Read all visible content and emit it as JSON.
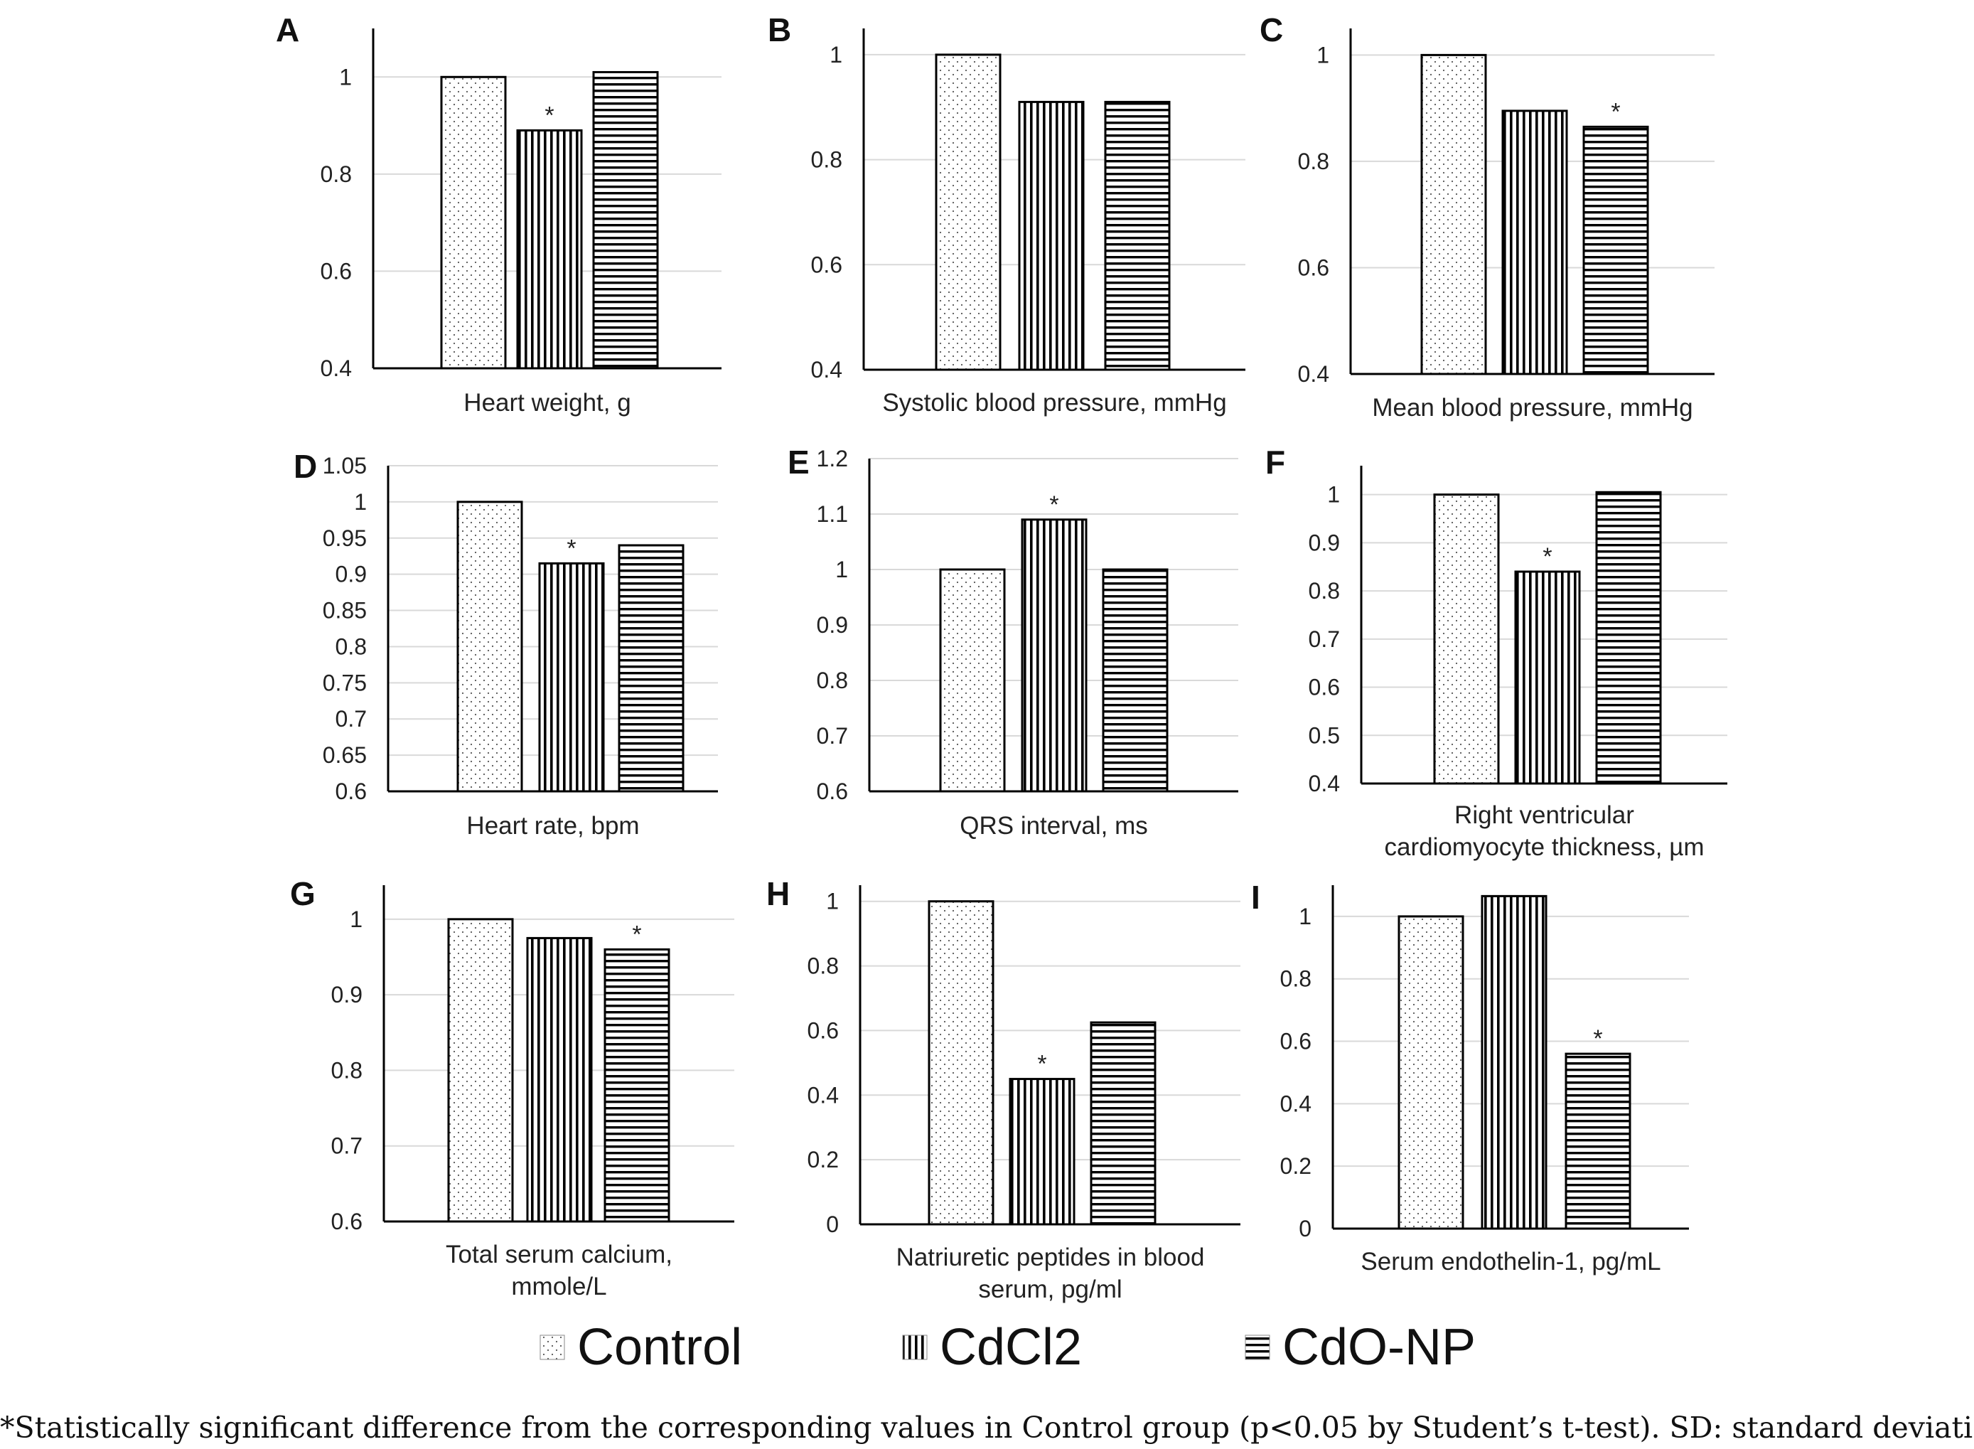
{
  "legend": [
    {
      "name": "Control",
      "pattern": "dots"
    },
    {
      "name": "CdCl2",
      "pattern": "vlines"
    },
    {
      "name": "CdO-NP",
      "pattern": "hlines"
    }
  ],
  "footnote": "*Statistically significant difference from the corresponding values in Control group (p<0.05 by Student’s t-test). SD: standard deviation.",
  "colors": {
    "axis": "#000000",
    "grid": "#d9d9d9",
    "text": "#222222",
    "bar_fill": "#ffffff"
  },
  "chart_data": [
    {
      "panel": "A",
      "type": "bar",
      "xlabel": [
        "Heart weight, g"
      ],
      "ylim": [
        0.4,
        1.1
      ],
      "yticks": [
        "0.4",
        "0.6",
        "0.8",
        "1"
      ],
      "series": [
        {
          "name": "Control",
          "value": 1.0,
          "sig": false
        },
        {
          "name": "CdCl2",
          "value": 0.89,
          "sig": true
        },
        {
          "name": "CdO-NP",
          "value": 1.01,
          "sig": false
        }
      ]
    },
    {
      "panel": "B",
      "type": "bar",
      "xlabel": [
        "Systolic blood pressure, mmHg"
      ],
      "ylim": [
        0.4,
        1.05
      ],
      "yticks": [
        "0.4",
        "0.6",
        "0.8",
        "1"
      ],
      "series": [
        {
          "name": "Control",
          "value": 1.0,
          "sig": false
        },
        {
          "name": "CdCl2",
          "value": 0.91,
          "sig": false
        },
        {
          "name": "CdO-NP",
          "value": 0.91,
          "sig": false
        }
      ]
    },
    {
      "panel": "C",
      "type": "bar",
      "xlabel": [
        "Mean blood pressure, mmHg"
      ],
      "ylim": [
        0.4,
        1.05
      ],
      "yticks": [
        "0.4",
        "0.6",
        "0.8",
        "1"
      ],
      "series": [
        {
          "name": "Control",
          "value": 1.0,
          "sig": false
        },
        {
          "name": "CdCl2",
          "value": 0.895,
          "sig": false
        },
        {
          "name": "CdO-NP",
          "value": 0.865,
          "sig": true
        }
      ]
    },
    {
      "panel": "D",
      "type": "bar",
      "xlabel": [
        "Heart rate, bpm"
      ],
      "ylim": [
        0.6,
        1.05
      ],
      "yticks": [
        "0.6",
        "0.65",
        "0.7",
        "0.75",
        "0.8",
        "0.85",
        "0.9",
        "0.95",
        "1",
        "1.05"
      ],
      "series": [
        {
          "name": "Control",
          "value": 1.0,
          "sig": false
        },
        {
          "name": "CdCl2",
          "value": 0.915,
          "sig": true
        },
        {
          "name": "CdO-NP",
          "value": 0.94,
          "sig": false
        }
      ]
    },
    {
      "panel": "E",
      "type": "bar",
      "xlabel": [
        "QRS interval, ms"
      ],
      "ylim": [
        0.6,
        1.2
      ],
      "yticks": [
        "0.6",
        "0.7",
        "0.8",
        "0.9",
        "1",
        "1.1",
        "1.2"
      ],
      "series": [
        {
          "name": "Control",
          "value": 1.0,
          "sig": false
        },
        {
          "name": "CdCl2",
          "value": 1.09,
          "sig": true
        },
        {
          "name": "CdO-NP",
          "value": 1.0,
          "sig": false
        }
      ]
    },
    {
      "panel": "F",
      "type": "bar",
      "xlabel": [
        "Right ventricular",
        "cardiomyocyte thickness, µm"
      ],
      "ylim": [
        0.4,
        1.06
      ],
      "yticks": [
        "0.4",
        "0.5",
        "0.6",
        "0.7",
        "0.8",
        "0.9",
        "1"
      ],
      "series": [
        {
          "name": "Control",
          "value": 1.0,
          "sig": false
        },
        {
          "name": "CdCl2",
          "value": 0.84,
          "sig": true
        },
        {
          "name": "CdO-NP",
          "value": 1.005,
          "sig": false
        }
      ]
    },
    {
      "panel": "G",
      "type": "bar",
      "xlabel": [
        "Total serum calcium,",
        "mmole/L"
      ],
      "ylim": [
        0.6,
        1.045
      ],
      "yticks": [
        "0.6",
        "0.7",
        "0.8",
        "0.9",
        "1"
      ],
      "series": [
        {
          "name": "Control",
          "value": 1.0,
          "sig": false
        },
        {
          "name": "CdCl2",
          "value": 0.975,
          "sig": false
        },
        {
          "name": "CdO-NP",
          "value": 0.96,
          "sig": true
        }
      ]
    },
    {
      "panel": "H",
      "type": "bar",
      "xlabel": [
        "Natriuretic peptides in blood",
        "serum, pg/ml"
      ],
      "ylim": [
        0,
        1.05
      ],
      "yticks": [
        "0",
        "0.2",
        "0.4",
        "0.6",
        "0.8",
        "1"
      ],
      "series": [
        {
          "name": "Control",
          "value": 1.0,
          "sig": false
        },
        {
          "name": "CdCl2",
          "value": 0.45,
          "sig": true
        },
        {
          "name": "CdO-NP",
          "value": 0.625,
          "sig": false
        }
      ]
    },
    {
      "panel": "I",
      "type": "bar",
      "xlabel": [
        "Serum endothelin-1, pg/mL"
      ],
      "ylim": [
        0,
        1.1
      ],
      "yticks": [
        "0",
        "0.2",
        "0.4",
        "0.6",
        "0.8",
        "1"
      ],
      "series": [
        {
          "name": "Control",
          "value": 1.0,
          "sig": false
        },
        {
          "name": "CdCl2",
          "value": 1.065,
          "sig": false
        },
        {
          "name": "CdO-NP",
          "value": 0.56,
          "sig": true
        }
      ]
    }
  ]
}
